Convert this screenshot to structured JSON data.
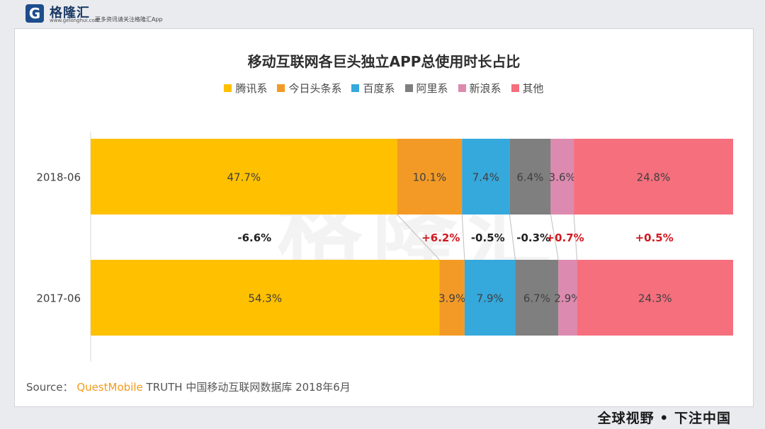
{
  "header": {
    "logo_letter": "G",
    "logo_name": "格隆汇",
    "logo_domain": "www.gelonghui.com",
    "note": "更多资讯请关注格隆汇App"
  },
  "chart_data": {
    "type": "bar",
    "orientation": "horizontal",
    "stacked": true,
    "title": "移动互联网各巨头独立APP总使用时长占比",
    "categories": [
      "2018-06",
      "2017-06"
    ],
    "series": [
      {
        "name": "腾讯系",
        "color": "#ffc000",
        "values": [
          47.7,
          54.3
        ],
        "labels": [
          "47.7%",
          "54.3%"
        ]
      },
      {
        "name": "今日头条系",
        "color": "#f39a26",
        "values": [
          10.1,
          3.9
        ],
        "labels": [
          "10.1%",
          "3.9%"
        ]
      },
      {
        "name": "百度系",
        "color": "#35a8dc",
        "values": [
          7.4,
          7.9
        ],
        "labels": [
          "7.4%",
          "7.9%"
        ]
      },
      {
        "name": "阿里系",
        "color": "#7f7f7f",
        "values": [
          6.4,
          6.7
        ],
        "labels": [
          "6.4%",
          "6.7%"
        ]
      },
      {
        "name": "新浪系",
        "color": "#dd8ab0",
        "values": [
          3.6,
          2.9
        ],
        "labels": [
          "3.6%",
          "2.9%"
        ]
      },
      {
        "name": "其他",
        "color": "#f56f7d",
        "values": [
          24.8,
          24.3
        ],
        "labels": [
          "24.8%",
          "24.3%"
        ]
      }
    ],
    "changes": [
      {
        "label": "-6.6%",
        "color": "#222222"
      },
      {
        "label": "+6.2%",
        "color": "#d0181f"
      },
      {
        "label": "-0.5%",
        "color": "#222222"
      },
      {
        "label": "-0.3%",
        "color": "#222222"
      },
      {
        "label": "+0.7%",
        "color": "#d0181f"
      },
      {
        "label": "+0.5%",
        "color": "#d0181f"
      }
    ],
    "legend_position": "top-center",
    "xlim": [
      0,
      100
    ],
    "grid": false
  },
  "watermark": {
    "main": "格隆汇",
    "sub": "www.gelonghui.com"
  },
  "source": {
    "prefix": "Source：",
    "brand": "QuestMobile",
    "rest": " TRUTH 中国移动互联网数据库 2018年6月"
  },
  "footer": {
    "slogan": "全球视野 • 下注中国"
  }
}
